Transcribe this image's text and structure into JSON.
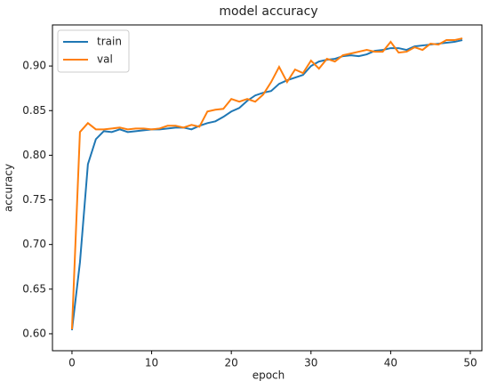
{
  "chart_data": {
    "type": "line",
    "title": "model accuracy",
    "xlabel": "epoch",
    "ylabel": "accuracy",
    "x": [
      0,
      1,
      2,
      3,
      4,
      5,
      6,
      7,
      8,
      9,
      10,
      11,
      12,
      13,
      14,
      15,
      16,
      17,
      18,
      19,
      20,
      21,
      22,
      23,
      24,
      25,
      26,
      27,
      28,
      29,
      30,
      31,
      32,
      33,
      34,
      35,
      36,
      37,
      38,
      39,
      40,
      41,
      42,
      43,
      44,
      45,
      46,
      47,
      48,
      49
    ],
    "series": [
      {
        "name": "train",
        "color": "#1f77b4",
        "values": [
          0.604,
          0.68,
          0.79,
          0.818,
          0.827,
          0.826,
          0.829,
          0.826,
          0.827,
          0.828,
          0.829,
          0.829,
          0.83,
          0.831,
          0.831,
          0.829,
          0.833,
          0.836,
          0.838,
          0.843,
          0.849,
          0.853,
          0.861,
          0.867,
          0.87,
          0.872,
          0.88,
          0.884,
          0.887,
          0.89,
          0.9,
          0.905,
          0.907,
          0.908,
          0.911,
          0.912,
          0.911,
          0.913,
          0.917,
          0.918,
          0.92,
          0.92,
          0.918,
          0.922,
          0.923,
          0.924,
          0.925,
          0.926,
          0.927,
          0.929
        ]
      },
      {
        "name": "val",
        "color": "#ff7f0e",
        "values": [
          0.605,
          0.826,
          0.836,
          0.829,
          0.829,
          0.83,
          0.831,
          0.829,
          0.83,
          0.83,
          0.829,
          0.83,
          0.833,
          0.833,
          0.831,
          0.834,
          0.832,
          0.849,
          0.851,
          0.852,
          0.863,
          0.86,
          0.863,
          0.86,
          0.868,
          0.882,
          0.899,
          0.882,
          0.896,
          0.892,
          0.906,
          0.897,
          0.908,
          0.905,
          0.912,
          0.914,
          0.916,
          0.918,
          0.916,
          0.916,
          0.927,
          0.915,
          0.916,
          0.921,
          0.918,
          0.925,
          0.924,
          0.929,
          0.929,
          0.931
        ]
      }
    ],
    "xlim": [
      -2.45,
      51.45
    ],
    "ylim": [
      0.581,
      0.946
    ],
    "xticks": [
      0,
      10,
      20,
      30,
      40,
      50
    ],
    "yticks": [
      {
        "value": 0.6,
        "label": "0.60"
      },
      {
        "value": 0.65,
        "label": "0.65"
      },
      {
        "value": 0.7,
        "label": "0.70"
      },
      {
        "value": 0.75,
        "label": "0.75"
      },
      {
        "value": 0.8,
        "label": "0.80"
      },
      {
        "value": 0.85,
        "label": "0.85"
      },
      {
        "value": 0.9,
        "label": "0.90"
      }
    ],
    "legend": "upper left"
  }
}
